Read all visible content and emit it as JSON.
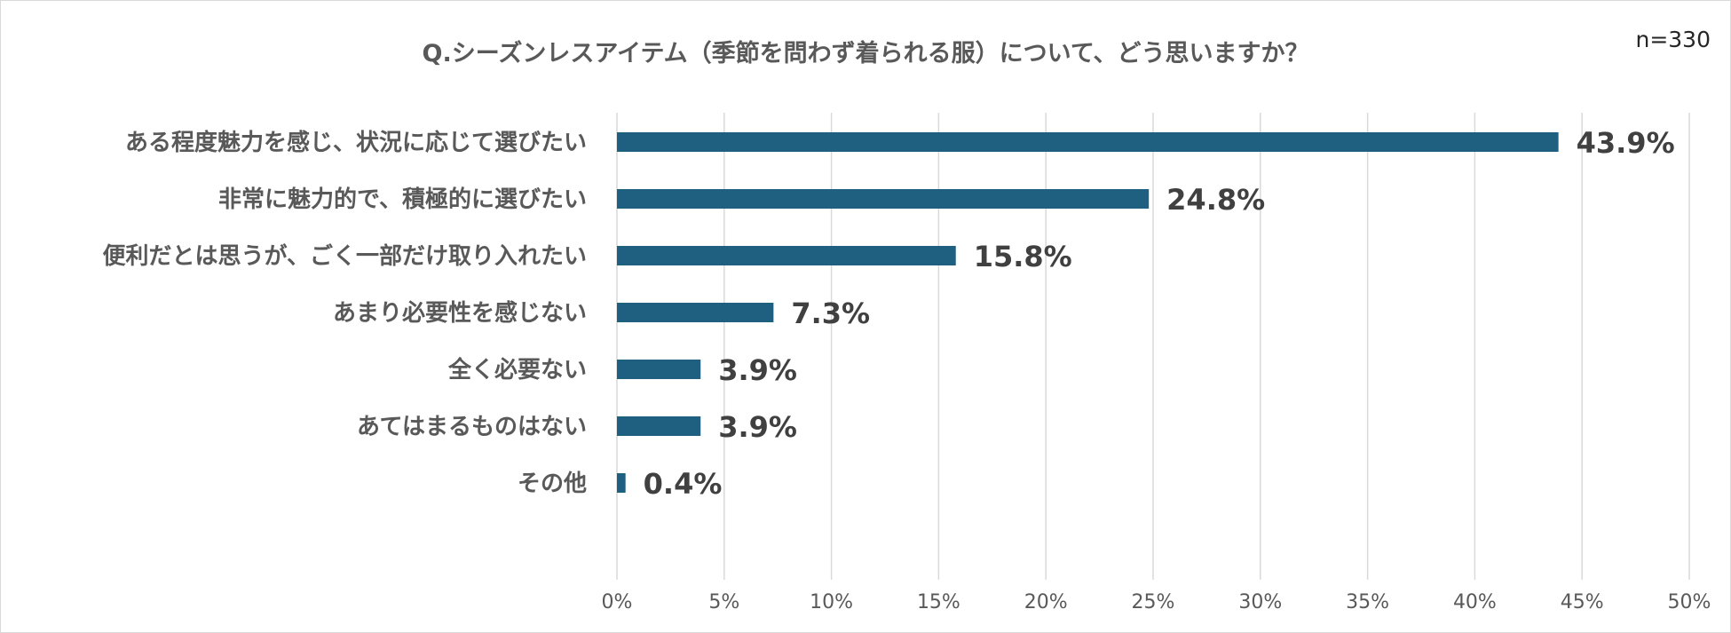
{
  "chart_data": {
    "type": "bar",
    "orientation": "horizontal",
    "title": "Q.シーズンレスアイテム（季節を問わず着られる服）について、どう思いますか？",
    "note": "n=330",
    "categories": [
      "ある程度魅力を感じ、状況に応じて選びたい",
      "非常に魅力的で、積極的に選びたい",
      "便利だとは思うが、ごく一部だけ取り入れたい",
      "あまり必要性を感じない",
      "全く必要ない",
      "あてはまるものはない",
      "その他"
    ],
    "values": [
      43.9,
      24.8,
      15.8,
      7.3,
      3.9,
      3.9,
      0.4
    ],
    "value_labels": [
      "43.9%",
      "24.8%",
      "15.8%",
      "7.3%",
      "3.9%",
      "3.9%",
      "0.4%"
    ],
    "xlim": [
      0,
      50
    ],
    "ticks": [
      0,
      5,
      10,
      15,
      20,
      25,
      30,
      35,
      40,
      45,
      50
    ],
    "tick_labels": [
      "0%",
      "5%",
      "10%",
      "15%",
      "20%",
      "25%",
      "30%",
      "35%",
      "40%",
      "45%",
      "50%"
    ],
    "grid": true,
    "legend": "none",
    "colors": {
      "bar": "#1f5f80",
      "grid": "#d9d9d9",
      "title": "#595959",
      "value_label": "#404040"
    }
  }
}
